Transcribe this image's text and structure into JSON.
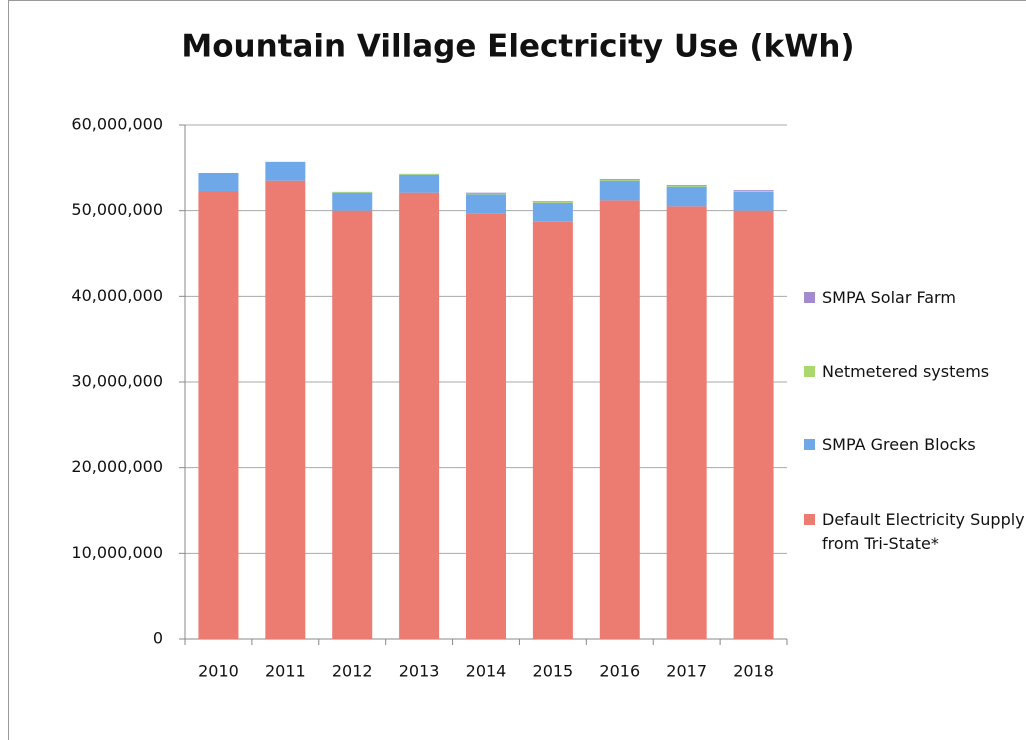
{
  "chart_data": {
    "type": "stacked-bar",
    "title": "Mountain Village Electricity Use (kWh)",
    "categories": [
      "2010",
      "2011",
      "2012",
      "2013",
      "2014",
      "2015",
      "2016",
      "2017",
      "2018"
    ],
    "series": [
      {
        "name": "Default Electricity Supply from Tri-State*",
        "color": "#ec7b72",
        "values": [
          52300000,
          53500000,
          50000000,
          52100000,
          49700000,
          48700000,
          51200000,
          50500000,
          50000000
        ]
      },
      {
        "name": "SMPA Green Blocks",
        "color": "#6fa8e8",
        "values": [
          2100000,
          2200000,
          2100000,
          2100000,
          2200000,
          2200000,
          2300000,
          2300000,
          2200000
        ]
      },
      {
        "name": "Netmetered systems",
        "color": "#a8d86e",
        "values": [
          0,
          0,
          100000,
          100000,
          100000,
          100000,
          100000,
          100000,
          100000
        ]
      },
      {
        "name": "SMPA Solar Farm",
        "color": "#a48bd0",
        "values": [
          0,
          0,
          0,
          0,
          100000,
          100000,
          100000,
          100000,
          100000
        ]
      }
    ],
    "ylim": [
      0,
      60000000
    ],
    "yticks": [
      0,
      {
        "value": 10000000,
        "label": "10,000,000"
      },
      {
        "value": 20000000,
        "label": "20,000,000"
      },
      {
        "value": 30000000,
        "label": "30,000,000"
      },
      {
        "value": 40000000,
        "label": "40,000,000"
      },
      {
        "value": 50000000,
        "label": "50,000,000"
      },
      {
        "value": 60000000,
        "label": "60,000,000"
      }
    ],
    "grid": true,
    "legend": "right"
  }
}
